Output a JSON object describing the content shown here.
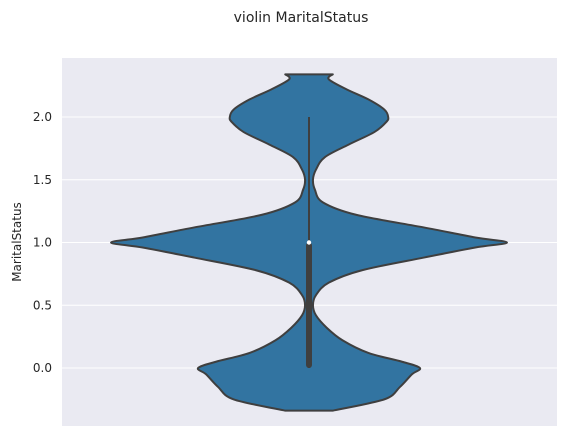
{
  "chart_data": {
    "type": "violin",
    "title": "violin MaritalStatus",
    "xlabel": "",
    "ylabel": "MaritalStatus",
    "ylim": [
      -0.34,
      2.34
    ],
    "yticks": [
      0.0,
      0.5,
      1.0,
      1.5,
      2.0
    ],
    "ytick_labels": [
      "0.0",
      "0.5",
      "1.0",
      "1.5",
      "2.0"
    ],
    "grid": true,
    "background": "#eaeaf2",
    "violin_color": "#3274a1",
    "edge_color": "#3f3f3f",
    "density_profile": [
      {
        "y": -0.34,
        "w": 0.12
      },
      {
        "y": -0.25,
        "w": 0.38
      },
      {
        "y": -0.15,
        "w": 0.46
      },
      {
        "y": -0.05,
        "w": 0.52
      },
      {
        "y": 0.0,
        "w": 0.56
      },
      {
        "y": 0.05,
        "w": 0.47
      },
      {
        "y": 0.12,
        "w": 0.3
      },
      {
        "y": 0.22,
        "w": 0.17
      },
      {
        "y": 0.32,
        "w": 0.09
      },
      {
        "y": 0.42,
        "w": 0.035
      },
      {
        "y": 0.5,
        "w": 0.02
      },
      {
        "y": 0.58,
        "w": 0.035
      },
      {
        "y": 0.68,
        "w": 0.1
      },
      {
        "y": 0.78,
        "w": 0.27
      },
      {
        "y": 0.88,
        "w": 0.58
      },
      {
        "y": 0.96,
        "w": 0.84
      },
      {
        "y": 1.0,
        "w": 1.0
      },
      {
        "y": 1.04,
        "w": 0.84
      },
      {
        "y": 1.12,
        "w": 0.58
      },
      {
        "y": 1.22,
        "w": 0.24
      },
      {
        "y": 1.32,
        "w": 0.07
      },
      {
        "y": 1.42,
        "w": 0.03
      },
      {
        "y": 1.5,
        "w": 0.02
      },
      {
        "y": 1.58,
        "w": 0.035
      },
      {
        "y": 1.68,
        "w": 0.08
      },
      {
        "y": 1.78,
        "w": 0.2
      },
      {
        "y": 1.88,
        "w": 0.33
      },
      {
        "y": 1.96,
        "w": 0.39
      },
      {
        "y": 2.0,
        "w": 0.4
      },
      {
        "y": 2.06,
        "w": 0.38
      },
      {
        "y": 2.14,
        "w": 0.3
      },
      {
        "y": 2.22,
        "w": 0.19
      },
      {
        "y": 2.3,
        "w": 0.1
      },
      {
        "y": 2.34,
        "w": 0.12
      }
    ],
    "box": {
      "q1": 0.0,
      "median": 1.0,
      "q3": 1.0,
      "whisker_low": 0.0,
      "whisker_high": 2.0
    }
  }
}
